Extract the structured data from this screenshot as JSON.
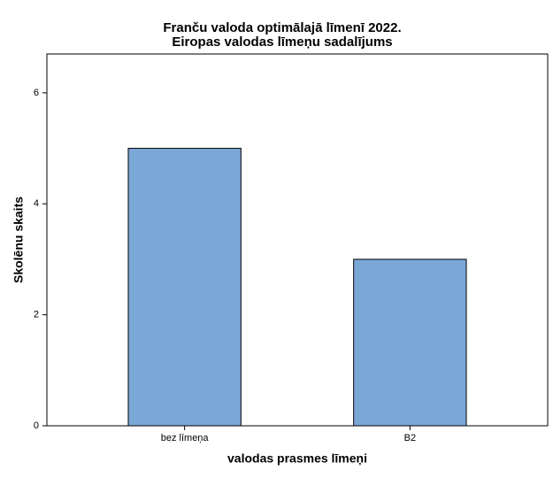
{
  "chart_data": {
    "type": "bar",
    "title": [
      "Franču valoda optimālajā līmenī 2022.",
      "Eiropas valodas līmeņu sadalījums"
    ],
    "x_label": "valodas prasmes līmeņi",
    "y_label": "Skolēnu skaits",
    "categories": [
      "bez līmeņa",
      "B2"
    ],
    "values": [
      5,
      3
    ],
    "color": "#7ba7d7",
    "ylim": [
      0,
      6.7
    ],
    "yticks": [
      0,
      2,
      4,
      6
    ],
    "grid": false
  }
}
